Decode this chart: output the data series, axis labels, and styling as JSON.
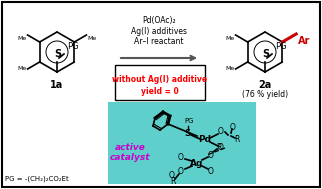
{
  "bg_color": "#ffffff",
  "border_color": "#000000",
  "arrow_color": "#555555",
  "box_border_color": "#000000",
  "teal_bg": "#5ecfca",
  "red_text_color": "#ff0000",
  "purple_text_color": "#cc00cc",
  "red_bond_color": "#cc0000",
  "reagents_line1": "Pd(OAc)₂",
  "reagents_line2": "Ag(I) additives",
  "reagents_line3": "Ar–I reactant",
  "box_line1": "without Ag(I) additive",
  "box_line2": "yield = 0",
  "label_1a": "1a",
  "label_pg": "PG = -(CH₂)₂CO₂Et",
  "label_2a": "2a",
  "label_yield": "(76 % yield)",
  "label_active1": "active",
  "label_active2": "catalyst",
  "figsize": [
    3.22,
    1.89
  ],
  "dpi": 100
}
